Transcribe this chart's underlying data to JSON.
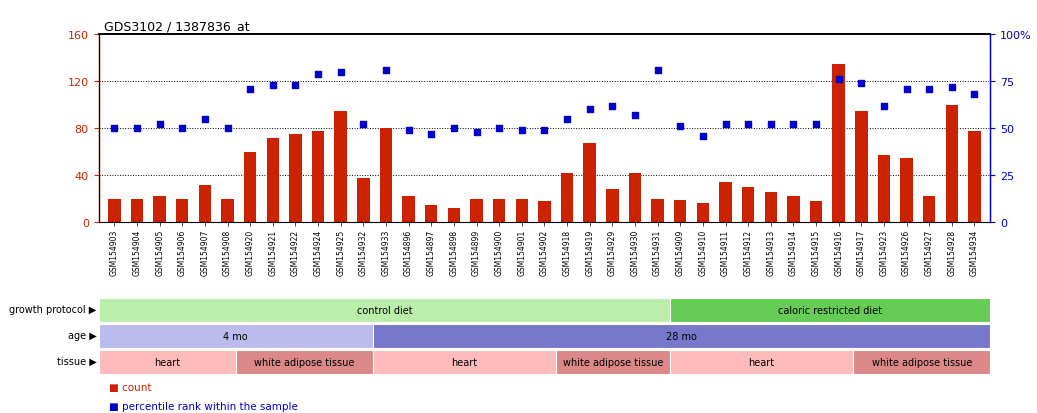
{
  "title": "GDS3102 / 1387836_at",
  "samples": [
    "GSM154903",
    "GSM154904",
    "GSM154905",
    "GSM154906",
    "GSM154907",
    "GSM154908",
    "GSM154920",
    "GSM154921",
    "GSM154922",
    "GSM154924",
    "GSM154925",
    "GSM154932",
    "GSM154933",
    "GSM154896",
    "GSM154897",
    "GSM154898",
    "GSM154899",
    "GSM154900",
    "GSM154901",
    "GSM154902",
    "GSM154918",
    "GSM154919",
    "GSM154929",
    "GSM154930",
    "GSM154931",
    "GSM154909",
    "GSM154910",
    "GSM154911",
    "GSM154912",
    "GSM154913",
    "GSM154914",
    "GSM154915",
    "GSM154916",
    "GSM154917",
    "GSM154923",
    "GSM154926",
    "GSM154927",
    "GSM154928",
    "GSM154934"
  ],
  "bar_values": [
    20,
    20,
    22,
    20,
    32,
    20,
    60,
    72,
    75,
    78,
    95,
    38,
    80,
    22,
    15,
    12,
    20,
    20,
    20,
    18,
    42,
    67,
    28,
    42,
    20,
    19,
    16,
    34,
    30,
    26,
    22,
    18,
    135,
    95,
    57,
    55,
    22,
    100,
    78
  ],
  "dot_values": [
    50,
    50,
    52,
    50,
    55,
    50,
    71,
    73,
    73,
    79,
    80,
    52,
    81,
    49,
    47,
    50,
    48,
    50,
    49,
    49,
    55,
    60,
    62,
    57,
    81,
    51,
    46,
    52,
    52,
    52,
    52,
    52,
    76,
    74,
    62,
    71,
    71,
    72,
    68
  ],
  "ylim_left": [
    0,
    160
  ],
  "ylim_right": [
    0,
    100
  ],
  "yticks_left": [
    0,
    40,
    80,
    120,
    160
  ],
  "yticks_right": [
    0,
    25,
    50,
    75,
    100
  ],
  "bar_color": "#cc2200",
  "dot_color": "#0000cc",
  "grid_values": [
    40,
    80,
    120
  ],
  "background_color": "#ffffff",
  "growth_protocol_segments": [
    {
      "label": "control diet",
      "start": 0,
      "end": 25,
      "color": "#bbeeaa"
    },
    {
      "label": "caloric restricted diet",
      "start": 25,
      "end": 39,
      "color": "#66cc55"
    }
  ],
  "age_segments": [
    {
      "label": "4 mo",
      "start": 0,
      "end": 12,
      "color": "#bbbbee"
    },
    {
      "label": "28 mo",
      "start": 12,
      "end": 39,
      "color": "#7777cc"
    }
  ],
  "tissue_segments": [
    {
      "label": "heart",
      "start": 0,
      "end": 6,
      "color": "#ffbbbb"
    },
    {
      "label": "white adipose tissue",
      "start": 6,
      "end": 12,
      "color": "#dd8888"
    },
    {
      "label": "heart",
      "start": 12,
      "end": 20,
      "color": "#ffbbbb"
    },
    {
      "label": "white adipose tissue",
      "start": 20,
      "end": 25,
      "color": "#dd8888"
    },
    {
      "label": "heart",
      "start": 25,
      "end": 33,
      "color": "#ffbbbb"
    },
    {
      "label": "white adipose tissue",
      "start": 33,
      "end": 39,
      "color": "#dd8888"
    }
  ],
  "row_labels": [
    "growth protocol",
    "age",
    "tissue"
  ],
  "legend_items": [
    {
      "label": "count",
      "color": "#cc2200"
    },
    {
      "label": "percentile rank within the sample",
      "color": "#0000cc"
    }
  ]
}
